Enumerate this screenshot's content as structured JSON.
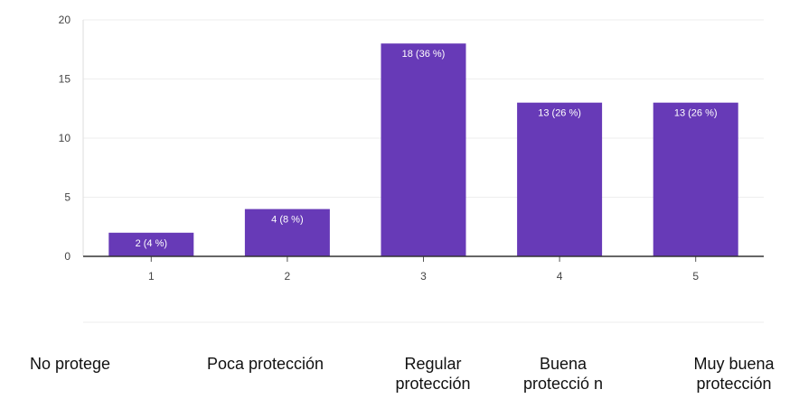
{
  "chart_data": {
    "type": "bar",
    "categories": [
      "1",
      "2",
      "3",
      "4",
      "5"
    ],
    "values": [
      2,
      4,
      18,
      13,
      13
    ],
    "data_labels": [
      "2 (4 %)",
      "4 (8 %)",
      "18 (36 %)",
      "13 (26 %)",
      "13 (26 %)"
    ],
    "yticks": [
      0,
      5,
      10,
      15,
      20
    ],
    "ylim": [
      0,
      20
    ],
    "grid": true,
    "bar_color": "#673ab7"
  },
  "scale_labels": {
    "l1": "No protege",
    "l2": "Poca protección",
    "l3": "Regular protección",
    "l4": "Buena protecció n",
    "l5": "Muy buena protección"
  }
}
